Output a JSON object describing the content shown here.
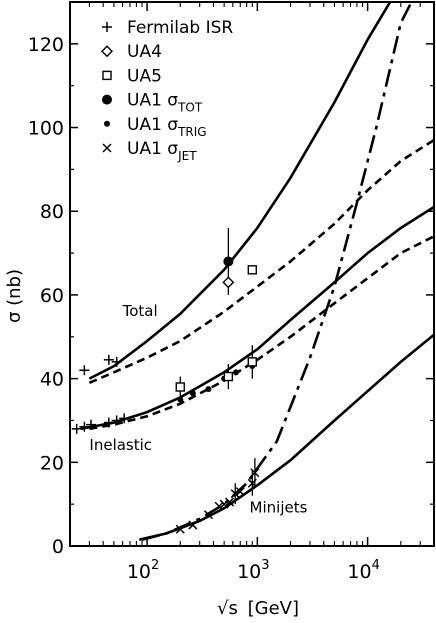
{
  "chart_data": {
    "type": "line",
    "xlabel": {
      "pre": "√s",
      "unit": "[GeV]"
    },
    "ylabel": "σ (nb)",
    "xscale": "log",
    "xlim": [
      20,
      40000
    ],
    "ylim": [
      0,
      130
    ],
    "grid": false,
    "legend_position": "top-left",
    "x_ticks": [
      {
        "base": "10",
        "exp": "2",
        "value": 100
      },
      {
        "base": "10",
        "exp": "3",
        "value": 1000
      },
      {
        "base": "10",
        "exp": "4",
        "value": 10000
      }
    ],
    "y_ticks": [
      "0",
      "20",
      "40",
      "60",
      "80",
      "100",
      "120"
    ],
    "legend": [
      {
        "marker": "plus",
        "main": "Fermilab ISR",
        "sub": ""
      },
      {
        "marker": "diamond",
        "main": "UA4",
        "sub": ""
      },
      {
        "marker": "square",
        "main": "UA5",
        "sub": ""
      },
      {
        "marker": "big-dot",
        "main": "UA1 σ",
        "sub": "TOT"
      },
      {
        "marker": "dot",
        "main": "UA1 σ",
        "sub": "TRIG"
      },
      {
        "marker": "cross",
        "main": "UA1 σ",
        "sub": "JET"
      }
    ],
    "curve_labels": [
      {
        "text": "Total",
        "x": 60,
        "y": 55
      },
      {
        "text": "Inelastic",
        "x": 30,
        "y": 23
      },
      {
        "text": "Minijets",
        "x": 850,
        "y": 8
      }
    ],
    "series": [
      {
        "style": "solid",
        "points": [
          [
            30,
            40
          ],
          [
            50,
            43
          ],
          [
            100,
            49
          ],
          [
            200,
            55.5
          ],
          [
            500,
            66
          ],
          [
            1000,
            76
          ],
          [
            2000,
            88
          ],
          [
            5000,
            106
          ],
          [
            10000,
            121
          ],
          [
            16000,
            130
          ]
        ]
      },
      {
        "style": "dashed",
        "points": [
          [
            30,
            39
          ],
          [
            50,
            41.5
          ],
          [
            100,
            45
          ],
          [
            200,
            49
          ],
          [
            500,
            56
          ],
          [
            1000,
            62
          ],
          [
            2000,
            68
          ],
          [
            5000,
            77
          ],
          [
            10000,
            85
          ],
          [
            20000,
            92
          ],
          [
            40000,
            97
          ]
        ]
      },
      {
        "style": "solid",
        "points": [
          [
            25,
            28
          ],
          [
            50,
            29.5
          ],
          [
            100,
            32
          ],
          [
            200,
            35.5
          ],
          [
            500,
            41.5
          ],
          [
            1000,
            47
          ],
          [
            2000,
            54
          ],
          [
            5000,
            63
          ],
          [
            10000,
            70
          ],
          [
            20000,
            76
          ],
          [
            40000,
            81
          ]
        ]
      },
      {
        "style": "dashed",
        "points": [
          [
            30,
            28
          ],
          [
            50,
            29
          ],
          [
            100,
            31
          ],
          [
            200,
            34
          ],
          [
            500,
            39.5
          ],
          [
            1000,
            44.5
          ],
          [
            2000,
            50
          ],
          [
            5000,
            58
          ],
          [
            10000,
            64
          ],
          [
            20000,
            70
          ],
          [
            40000,
            74
          ]
        ]
      },
      {
        "style": "solid",
        "points": [
          [
            85,
            1.5
          ],
          [
            150,
            3
          ],
          [
            300,
            6
          ],
          [
            500,
            9
          ],
          [
            1000,
            14.5
          ],
          [
            2000,
            20.5
          ],
          [
            5000,
            30
          ],
          [
            10000,
            37
          ],
          [
            20000,
            44
          ],
          [
            40000,
            50.5
          ]
        ]
      },
      {
        "style": "dashdot",
        "points": [
          [
            90,
            1.5
          ],
          [
            150,
            3
          ],
          [
            300,
            6.5
          ],
          [
            500,
            10
          ],
          [
            800,
            15
          ],
          [
            1500,
            25
          ],
          [
            3000,
            45
          ],
          [
            5000,
            62
          ],
          [
            8000,
            82
          ],
          [
            12000,
            100
          ],
          [
            20000,
            125
          ],
          [
            25000,
            130
          ]
        ]
      }
    ],
    "points": {
      "isr": [
        [
          23,
          28
        ],
        [
          27,
          28.5
        ],
        [
          31,
          29
        ],
        [
          45,
          29.5
        ],
        [
          53,
          30
        ],
        [
          62,
          30.5
        ],
        [
          27,
          42
        ],
        [
          45,
          44.5
        ],
        [
          53,
          44
        ]
      ],
      "ua4": [
        [
          546,
          63
        ]
      ],
      "ua5": [
        [
          200,
          38
        ],
        [
          546,
          40.5
        ],
        [
          900,
          44
        ],
        [
          900,
          66
        ]
      ],
      "ua1_tot": [
        [
          546,
          68
        ]
      ],
      "ua1_trig": [
        [
          200,
          35
        ],
        [
          260,
          36.5
        ],
        [
          360,
          37.5
        ],
        [
          500,
          40
        ],
        [
          540,
          41
        ],
        [
          640,
          41.5
        ],
        [
          900,
          43
        ],
        [
          560,
          40.5
        ]
      ],
      "ua1_jet": [
        [
          200,
          4
        ],
        [
          260,
          5
        ],
        [
          360,
          7.5
        ],
        [
          450,
          9.5
        ],
        [
          500,
          10
        ],
        [
          560,
          10.5
        ],
        [
          630,
          12.5
        ],
        [
          700,
          13
        ],
        [
          900,
          15
        ],
        [
          950,
          17.5
        ]
      ]
    },
    "error_bars": [
      {
        "x": 546,
        "y": 68,
        "err": 8
      },
      {
        "x": 900,
        "y": 44,
        "err": 4
      },
      {
        "x": 200,
        "y": 38,
        "err": 2.5
      },
      {
        "x": 546,
        "y": 40.5,
        "err": 3
      },
      {
        "x": 950,
        "y": 17.5,
        "err": 3.5
      },
      {
        "x": 900,
        "y": 15,
        "err": 3
      },
      {
        "x": 630,
        "y": 12.5,
        "err": 2.5
      }
    ],
    "colors": {
      "ink": "#000000",
      "background": "#ffffff"
    }
  }
}
